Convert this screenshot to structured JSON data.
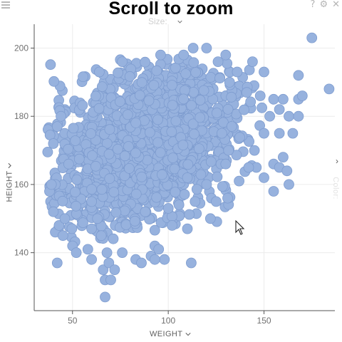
{
  "header": {
    "title": "Scroll to zoom"
  },
  "toolbar": {
    "menu_icon": "hamburger-menu-icon",
    "help_icon": "?",
    "settings_icon": "gear-icon",
    "close_icon": "close-icon"
  },
  "controls": {
    "size_label": "Size:",
    "color_label": "Color:",
    "x_axis_label": "WEIGHT",
    "y_axis_label": "HEIGHT",
    "expand_panel_icon": "chevron-right-icon"
  },
  "colors": {
    "point_fill": "#97b2de",
    "point_stroke": "#7e9ccf",
    "axis": "#555555",
    "grid": "#ececec"
  },
  "chart_data": {
    "type": "scatter",
    "title": "Scroll to zoom",
    "xlabel": "WEIGHT",
    "ylabel": "HEIGHT",
    "xlim": [
      30,
      187
    ],
    "ylim": [
      123,
      207
    ],
    "xticks": [
      50,
      100,
      150
    ],
    "yticks": [
      140,
      160,
      180,
      200
    ],
    "grid": true,
    "legend": "none",
    "points": [
      [
        175,
        203
      ],
      [
        184,
        188
      ],
      [
        168,
        192
      ],
      [
        136,
        193
      ],
      [
        144,
        196
      ],
      [
        150,
        193
      ],
      [
        126,
        196
      ],
      [
        130,
        198
      ],
      [
        120,
        200
      ],
      [
        108,
        198
      ],
      [
        113,
        200
      ],
      [
        96,
        198
      ],
      [
        76,
        196
      ],
      [
        64,
        193
      ],
      [
        132,
        190
      ],
      [
        141,
        187
      ],
      [
        148,
        186
      ],
      [
        155,
        185
      ],
      [
        160,
        185
      ],
      [
        158,
        182
      ],
      [
        153,
        180
      ],
      [
        163,
        180
      ],
      [
        165,
        175
      ],
      [
        168,
        180
      ],
      [
        158,
        175
      ],
      [
        150,
        175
      ],
      [
        160,
        168
      ],
      [
        155,
        166
      ],
      [
        158,
        165
      ],
      [
        162,
        164
      ],
      [
        163,
        160
      ],
      [
        150,
        162
      ],
      [
        146,
        165
      ],
      [
        155,
        158
      ],
      [
        168,
        185
      ],
      [
        170,
        186
      ],
      [
        42,
        177
      ],
      [
        40,
        172
      ],
      [
        44,
        180
      ],
      [
        48,
        166
      ],
      [
        41,
        160
      ],
      [
        38,
        158
      ],
      [
        40,
        152
      ],
      [
        41,
        146
      ],
      [
        43,
        148
      ],
      [
        45,
        145
      ],
      [
        50,
        142
      ],
      [
        52,
        140
      ],
      [
        58,
        141
      ],
      [
        60,
        138
      ],
      [
        66,
        135
      ],
      [
        68,
        140
      ],
      [
        65,
        145
      ],
      [
        63,
        150
      ],
      [
        60,
        155
      ],
      [
        67,
        132
      ],
      [
        70,
        132
      ],
      [
        67,
        127
      ],
      [
        69,
        137
      ],
      [
        72,
        135
      ],
      [
        83,
        138
      ],
      [
        93,
        142
      ],
      [
        95,
        141
      ],
      [
        98,
        138
      ],
      [
        112,
        137
      ],
      [
        122,
        150
      ],
      [
        110,
        147
      ],
      [
        102,
        148
      ],
      [
        88,
        152
      ],
      [
        100,
        153
      ],
      [
        114,
        155
      ],
      [
        125,
        155
      ],
      [
        131,
        156
      ],
      [
        137,
        161
      ],
      [
        142,
        165
      ],
      [
        145,
        170
      ],
      [
        130,
        166
      ],
      [
        128,
        175
      ],
      [
        120,
        160
      ],
      [
        110,
        162
      ],
      [
        91,
        139
      ],
      [
        86,
        137
      ],
      [
        93,
        138
      ],
      [
        76,
        140
      ],
      [
        60,
        147
      ],
      [
        46,
        150
      ],
      [
        42,
        137
      ],
      [
        39,
        160
      ]
    ]
  }
}
